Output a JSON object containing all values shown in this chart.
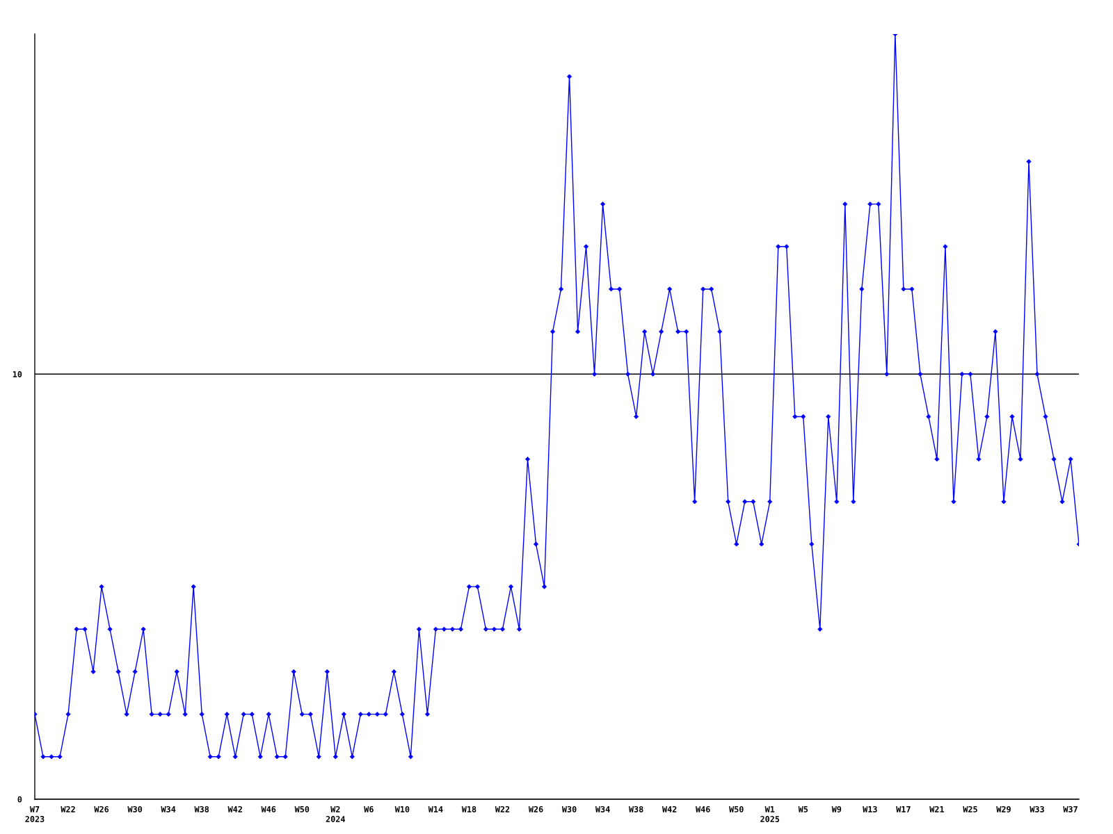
{
  "chart_data": {
    "type": "line",
    "categories": [
      "W7\n2023",
      null,
      null,
      null,
      "W22",
      null,
      null,
      null,
      "W26",
      null,
      null,
      null,
      "W30",
      null,
      null,
      null,
      "W34",
      null,
      null,
      null,
      "W38",
      null,
      null,
      null,
      "W42",
      null,
      null,
      null,
      "W46",
      null,
      null,
      null,
      "W50",
      null,
      null,
      null,
      "W2\n2024",
      null,
      null,
      null,
      "W6",
      null,
      null,
      null,
      "W10",
      null,
      null,
      null,
      "W14",
      null,
      null,
      null,
      "W18",
      null,
      null,
      null,
      "W22",
      null,
      null,
      null,
      "W26",
      null,
      null,
      null,
      "W30",
      null,
      null,
      null,
      "W34",
      null,
      null,
      null,
      "W38",
      null,
      null,
      null,
      "W42",
      null,
      null,
      null,
      "W46",
      null,
      null,
      null,
      "W50",
      null,
      null,
      null,
      "W1\n2025",
      null,
      null,
      null,
      "W5",
      null,
      null,
      null,
      "W9",
      null,
      null,
      null,
      "W13",
      null,
      null,
      null,
      "W17",
      null,
      null,
      null,
      "W21",
      null,
      null,
      null,
      "W25",
      null,
      null,
      null,
      "W29",
      null,
      null,
      null,
      "W33",
      null,
      null,
      null,
      "W37",
      null
    ],
    "values": [
      2,
      1,
      1,
      1,
      2,
      4,
      4,
      3,
      5,
      4,
      3,
      2,
      3,
      4,
      2,
      2,
      2,
      3,
      2,
      5,
      2,
      1,
      1,
      2,
      1,
      2,
      2,
      1,
      2,
      1,
      1,
      3,
      2,
      2,
      1,
      3,
      1,
      2,
      1,
      2,
      2,
      2,
      2,
      3,
      2,
      1,
      4,
      2,
      4,
      4,
      4,
      4,
      5,
      5,
      4,
      4,
      4,
      5,
      4,
      8,
      6,
      5,
      11,
      12,
      17,
      11,
      13,
      10,
      14,
      12,
      12,
      10,
      9,
      11,
      10,
      11,
      12,
      11,
      11,
      7,
      12,
      12,
      11,
      7,
      6,
      7,
      7,
      6,
      7,
      13,
      13,
      9,
      9,
      6,
      4,
      9,
      7,
      14,
      7,
      12,
      14,
      14,
      10,
      18,
      12,
      12,
      10,
      9,
      8,
      13,
      7,
      10,
      10,
      8,
      9,
      11,
      7,
      9,
      8,
      15,
      10,
      9,
      8,
      7,
      8,
      6
    ],
    "color": "#0000ff",
    "marker": "diamond",
    "ylim": [
      0,
      18
    ],
    "yticks": [
      0,
      10
    ],
    "grid": "y"
  }
}
